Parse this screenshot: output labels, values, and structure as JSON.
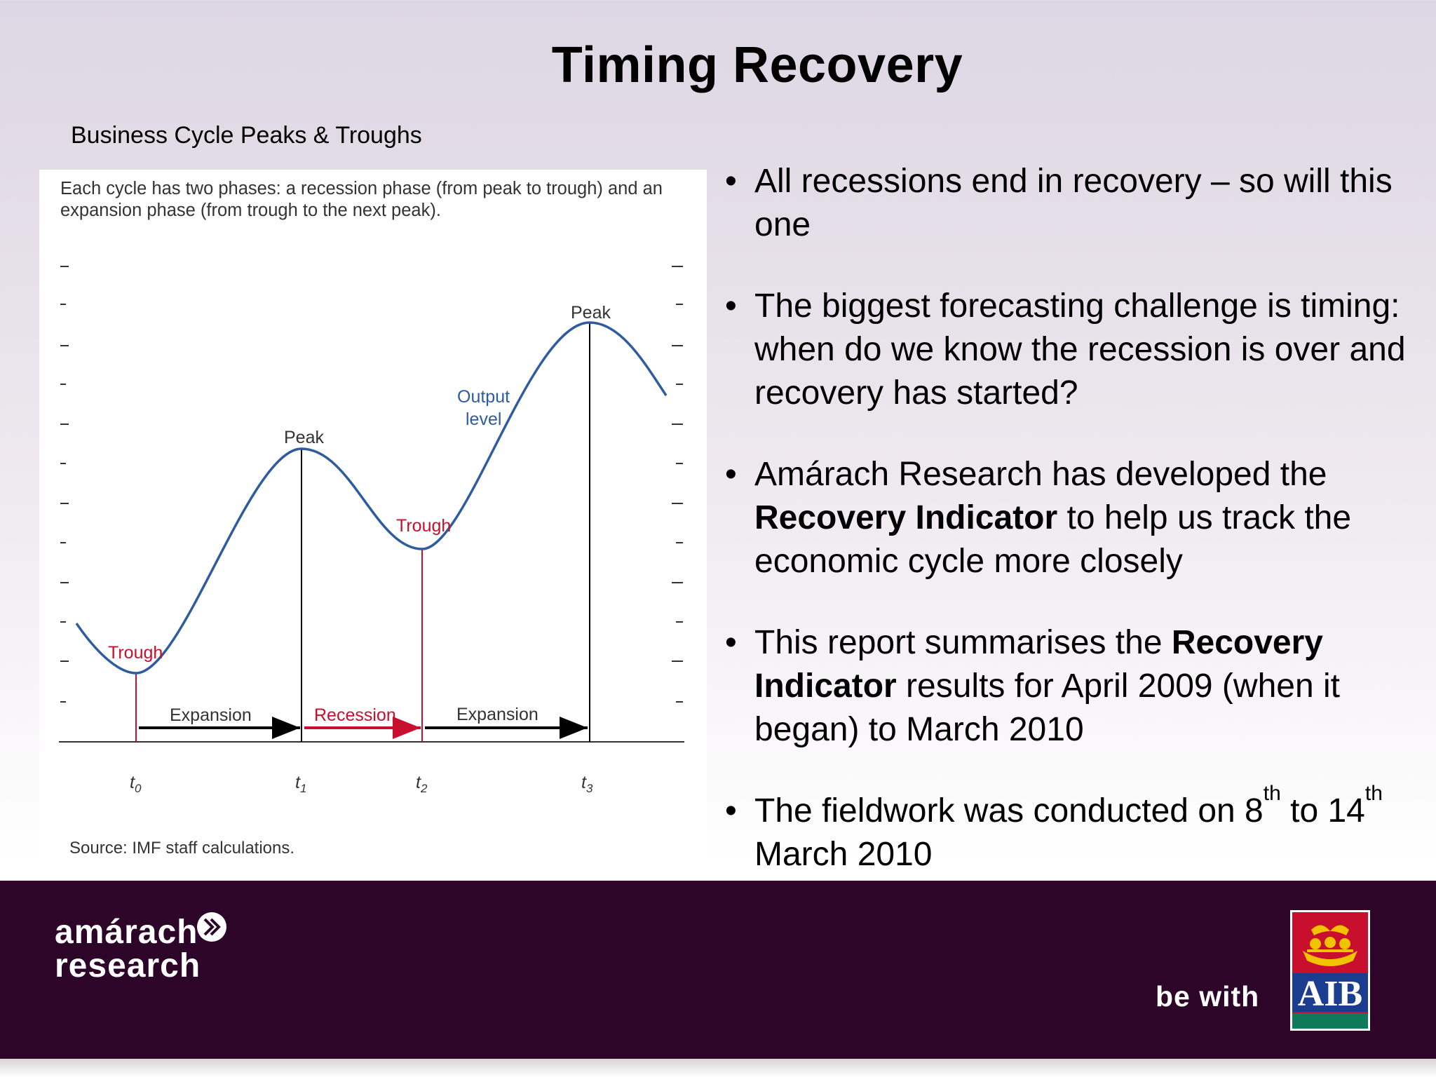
{
  "slide": {
    "title": "Timing Recovery",
    "subtitle": "Business Cycle Peaks & Troughs"
  },
  "figure": {
    "caption": "Each cycle has two phases: a recession phase (from peak to trough) and an expansion phase (from trough to the next peak).",
    "source": "Source: IMF staff calculations.",
    "labels": {
      "peak": "Peak",
      "trough": "Trough",
      "output_level_line1": "Output",
      "output_level_line2": "level",
      "expansion": "Expansion",
      "recession": "Recession",
      "t0": "t",
      "t0_sub": "0",
      "t1": "t",
      "t1_sub": "1",
      "t2": "t",
      "t2_sub": "2",
      "t3": "t",
      "t3_sub": "3"
    },
    "colors": {
      "curve": "#2e5c9e",
      "recession": "#c8102e",
      "expansion": "#000000",
      "output_label": "#2e5c9e"
    }
  },
  "bullets": [
    {
      "text": "All recessions end in recovery – so will this one"
    },
    {
      "text": "The biggest forecasting challenge is timing: when do we know the recession is over and recovery has started?"
    },
    {
      "pre": "Amárach Research has developed the ",
      "bold": "Recovery Indicator",
      "post": " to help us track the economic cycle more closely"
    },
    {
      "pre": "This report summarises the ",
      "bold": "Recovery Indicator",
      "post": " results for April 2009 (when it began) to March 2010"
    },
    {
      "pre": "The fieldwork was conducted on 8",
      "sup1": "th",
      "mid": " to 14",
      "sup2": "th",
      "post": " March 2010"
    }
  ],
  "footer": {
    "brand_line1": "amárach",
    "brand_line2": "research",
    "tagline": "be with",
    "aib_text": "AIB",
    "colors": {
      "background": "#2c0528",
      "aib_red": "#c8102e",
      "aib_blue": "#1a3d8f",
      "aib_green": "#0e7a5a",
      "aib_gold": "#f2c200"
    }
  }
}
